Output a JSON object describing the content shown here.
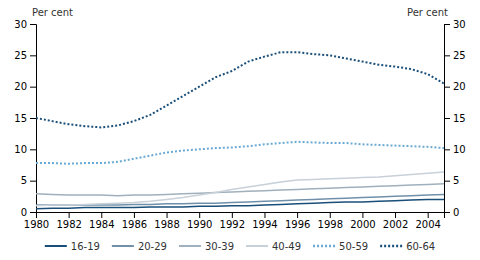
{
  "chart_data": {
    "type": "line",
    "ylabel": "Per cent",
    "y2label": "Per cent",
    "x": [
      1980,
      1981,
      1982,
      1983,
      1984,
      1985,
      1986,
      1987,
      1988,
      1989,
      1990,
      1991,
      1992,
      1993,
      1994,
      1995,
      1996,
      1997,
      1998,
      1999,
      2000,
      2001,
      2002,
      2003,
      2004,
      2005
    ],
    "series": [
      {
        "name": "16-19",
        "color": "#1a4f7a",
        "line_style": "solid",
        "values": [
          0.5,
          0.6,
          0.6,
          0.7,
          0.7,
          0.7,
          0.7,
          0.8,
          0.8,
          0.8,
          0.9,
          0.9,
          1.0,
          1.0,
          1.1,
          1.2,
          1.3,
          1.4,
          1.5,
          1.6,
          1.6,
          1.7,
          1.8,
          1.9,
          2.0,
          2.0
        ]
      },
      {
        "name": "20-29",
        "color": "#7090aa",
        "line_style": "solid",
        "values": [
          1.1,
          1.1,
          1.1,
          1.1,
          1.1,
          1.1,
          1.2,
          1.2,
          1.3,
          1.3,
          1.4,
          1.4,
          1.5,
          1.6,
          1.7,
          1.8,
          1.9,
          2.0,
          2.1,
          2.2,
          2.3,
          2.4,
          2.5,
          2.6,
          2.7,
          2.8
        ]
      },
      {
        "name": "30-39",
        "color": "#a0b0bc",
        "line_style": "solid",
        "values": [
          2.9,
          2.8,
          2.7,
          2.7,
          2.7,
          2.6,
          2.7,
          2.7,
          2.8,
          2.9,
          3.0,
          3.1,
          3.2,
          3.3,
          3.4,
          3.5,
          3.6,
          3.7,
          3.8,
          3.9,
          4.0,
          4.1,
          4.2,
          4.3,
          4.4,
          4.5
        ]
      },
      {
        "name": "40-49",
        "color": "#c8d0d8",
        "line_style": "solid",
        "values": [
          1.0,
          1.1,
          1.1,
          1.2,
          1.3,
          1.4,
          1.5,
          1.7,
          2.0,
          2.3,
          2.7,
          3.1,
          3.6,
          4.0,
          4.4,
          4.8,
          5.1,
          5.2,
          5.3,
          5.4,
          5.5,
          5.6,
          5.8,
          6.0,
          6.2,
          6.4
        ]
      },
      {
        "name": "50-59",
        "color": "#6aaad4",
        "line_style": "dotted",
        "values": [
          7.8,
          7.8,
          7.7,
          7.8,
          7.8,
          8.0,
          8.5,
          9.0,
          9.5,
          9.8,
          10.0,
          10.2,
          10.3,
          10.5,
          10.8,
          11.0,
          11.2,
          11.1,
          11.0,
          11.0,
          10.8,
          10.7,
          10.6,
          10.5,
          10.4,
          10.2
        ]
      },
      {
        "name": "60-64",
        "color": "#1a4f7a",
        "line_style": "dotted",
        "values": [
          15.0,
          14.5,
          14.0,
          13.7,
          13.5,
          13.8,
          14.5,
          15.5,
          17.0,
          18.5,
          20.0,
          21.5,
          22.5,
          24.0,
          24.8,
          25.5,
          25.5,
          25.2,
          25.0,
          24.5,
          24.0,
          23.5,
          23.2,
          22.8,
          22.0,
          20.5
        ]
      }
    ],
    "xlim": [
      1980,
      2005
    ],
    "xticks": [
      1980,
      1982,
      1984,
      1986,
      1988,
      1990,
      1992,
      1994,
      1996,
      1998,
      2000,
      2002,
      2004
    ],
    "ylim": [
      0,
      30
    ],
    "yticks": [
      0,
      5,
      10,
      15,
      20,
      25,
      30
    ],
    "y2lim": [
      0,
      30
    ],
    "y2ticks": [
      0,
      5,
      10,
      15,
      20,
      25,
      30
    ],
    "grid": false,
    "legend": "bottom"
  }
}
